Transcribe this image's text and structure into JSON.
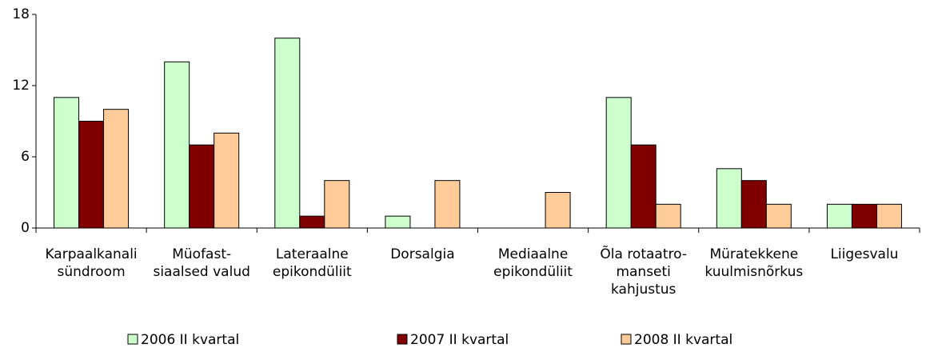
{
  "chart_data": {
    "type": "bar",
    "categories": [
      [
        "Karpaalkanali",
        "sündroom"
      ],
      [
        "Müofast-",
        "siaalsed valud"
      ],
      [
        "Lateraalne",
        "epikondüliit"
      ],
      [
        "Dorsalgia"
      ],
      [
        "Mediaalne",
        "epikondüliit"
      ],
      [
        "Õla rotaatro-",
        "manseti",
        "kahjustus"
      ],
      [
        "Müratekkene",
        "kuulmisnõrkus"
      ],
      [
        "Liigesvalu"
      ]
    ],
    "series": [
      {
        "name": "2006 II kvartal",
        "color": "#ccffcc",
        "values": [
          11,
          14,
          16,
          1,
          0,
          11,
          5,
          2
        ]
      },
      {
        "name": "2007 II kvartal",
        "color": "#800000",
        "values": [
          9,
          7,
          1,
          0,
          0,
          7,
          4,
          2
        ]
      },
      {
        "name": "2008 II kvartal",
        "color": "#ffcc99",
        "values": [
          10,
          8,
          4,
          4,
          3,
          2,
          2,
          2
        ]
      }
    ],
    "ylim": [
      0,
      18
    ],
    "yticks": [
      0,
      6,
      12,
      18
    ],
    "grid": false,
    "legend": "bottom"
  }
}
